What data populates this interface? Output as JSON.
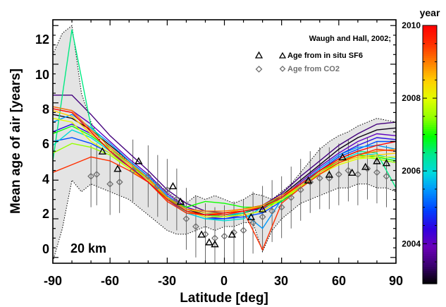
{
  "chart_data": {
    "type": "line",
    "xlabel": "Latitude [deg]",
    "ylabel": "Mean age of air [years]",
    "xlim": [
      -90,
      90
    ],
    "ylim": [
      -0.3,
      12.3
    ],
    "x_ticks": [
      -90,
      -60,
      -30,
      0,
      30,
      60,
      90
    ],
    "y_ticks": [
      0,
      2,
      4,
      6,
      8,
      10,
      12
    ],
    "annotation": "20 km",
    "grid": false,
    "legend_position": "top-right",
    "legend_title": "Waugh and Hall, 2002;",
    "legend": [
      {
        "name": "Age from in situ SF6",
        "marker": "triangle",
        "color": "#000000"
      },
      {
        "name": "Age from CO2",
        "marker": "diamond",
        "color": "#707070"
      }
    ],
    "colorbar": {
      "title": "year",
      "range": [
        2002.9,
        2010.0
      ],
      "ticks": [
        2004,
        2006,
        2008,
        2010
      ],
      "colors": [
        "#000000",
        "#3a0070",
        "#6a00b8",
        "#3000e0",
        "#0040ff",
        "#0090ff",
        "#00d8e0",
        "#00e890",
        "#00ff00",
        "#90ff00",
        "#e0ff00",
        "#ffd000",
        "#ff8000",
        "#ff3000",
        "#ff0000"
      ]
    },
    "spread_envelope": {
      "x": [
        -90,
        -85,
        -80,
        -75,
        -70,
        -65,
        -60,
        -55,
        -50,
        -45,
        -40,
        -35,
        -30,
        -25,
        -20,
        -15,
        -10,
        -5,
        0,
        5,
        10,
        15,
        20,
        25,
        30,
        35,
        40,
        45,
        50,
        55,
        60,
        65,
        70,
        75,
        80,
        85,
        90
      ],
      "upper": [
        10.5,
        11.6,
        12.0,
        8.5,
        7.0,
        6.0,
        5.5,
        5.3,
        5.0,
        4.6,
        4.2,
        3.8,
        3.4,
        3.0,
        2.8,
        3.2,
        3.0,
        3.2,
        3.0,
        2.8,
        3.0,
        3.3,
        3.2,
        3.0,
        3.4,
        3.8,
        4.4,
        5.0,
        5.6,
        6.0,
        6.3,
        6.5,
        6.8,
        7.0,
        7.2,
        7.1,
        7.0
      ],
      "lower": [
        -0.2,
        1.5,
        4.0,
        3.4,
        3.8,
        3.6,
        3.4,
        3.2,
        3.0,
        2.6,
        2.2,
        1.8,
        1.4,
        1.2,
        1.2,
        1.4,
        1.6,
        1.4,
        1.6,
        1.6,
        1.8,
        1.8,
        0.3,
        1.4,
        2.0,
        2.4,
        2.8,
        3.0,
        3.2,
        3.4,
        3.6,
        3.6,
        3.8,
        3.8,
        3.6,
        3.6,
        3.4
      ]
    },
    "x": [
      -90,
      -80,
      -70,
      -60,
      -50,
      -40,
      -30,
      -20,
      -10,
      0,
      10,
      20,
      30,
      40,
      50,
      60,
      70,
      80,
      90
    ],
    "series": [
      {
        "year": 2003.0,
        "values": [
          7.4,
          7.2,
          6.6,
          5.8,
          5.0,
          4.2,
          3.2,
          2.5,
          2.2,
          2.1,
          2.3,
          2.6,
          3.2,
          4.0,
          4.8,
          5.6,
          6.2,
          6.6,
          6.7
        ]
      },
      {
        "year": 2003.5,
        "values": [
          8.4,
          8.4,
          7.4,
          6.3,
          5.4,
          4.5,
          3.5,
          2.8,
          2.4,
          2.3,
          2.5,
          2.7,
          3.3,
          4.2,
          5.0,
          5.8,
          6.4,
          6.9,
          7.0
        ]
      },
      {
        "year": 2004.0,
        "values": [
          7.8,
          7.6,
          6.9,
          6.0,
          5.1,
          4.3,
          3.3,
          2.6,
          2.3,
          2.2,
          2.4,
          2.5,
          3.1,
          3.9,
          4.7,
          5.4,
          6.0,
          6.4,
          6.3
        ]
      },
      {
        "year": 2004.5,
        "values": [
          6.5,
          6.9,
          6.4,
          5.6,
          4.9,
          4.1,
          3.1,
          2.4,
          2.1,
          2.0,
          2.2,
          2.4,
          3.0,
          3.8,
          4.6,
          5.3,
          5.8,
          6.2,
          6.1
        ]
      },
      {
        "year": 2005.0,
        "values": [
          6.0,
          6.2,
          5.9,
          5.4,
          4.7,
          4.0,
          3.0,
          2.3,
          2.0,
          2.0,
          2.1,
          2.3,
          2.9,
          3.7,
          4.5,
          5.2,
          5.6,
          6.0,
          6.0
        ]
      },
      {
        "year": 2005.5,
        "values": [
          7.0,
          7.4,
          6.7,
          5.9,
          5.0,
          4.2,
          3.2,
          2.5,
          2.3,
          2.2,
          2.3,
          1.5,
          3.0,
          3.8,
          4.6,
          5.3,
          5.7,
          5.8,
          5.6
        ]
      },
      {
        "year": 2006.0,
        "values": [
          5.8,
          6.6,
          6.2,
          5.5,
          4.8,
          4.0,
          3.1,
          2.3,
          2.0,
          1.9,
          2.0,
          2.6,
          3.0,
          3.7,
          4.4,
          5.0,
          5.4,
          5.3,
          5.1
        ]
      },
      {
        "year": 2006.5,
        "values": [
          5.0,
          11.8,
          6.8,
          5.6,
          4.9,
          4.1,
          3.1,
          2.4,
          2.2,
          2.1,
          2.3,
          2.7,
          3.1,
          3.8,
          4.5,
          5.1,
          5.5,
          5.4,
          3.6
        ]
      },
      {
        "year": 2007.0,
        "values": [
          6.4,
          6.8,
          6.3,
          5.6,
          4.8,
          4.1,
          3.0,
          2.6,
          2.9,
          2.8,
          2.6,
          2.6,
          2.9,
          3.6,
          4.4,
          5.0,
          5.3,
          5.2,
          5.0
        ]
      },
      {
        "year": 2007.5,
        "values": [
          5.4,
          5.9,
          5.7,
          5.3,
          4.6,
          3.9,
          3.0,
          2.4,
          2.2,
          2.2,
          2.4,
          2.6,
          3.0,
          3.7,
          4.3,
          4.9,
          5.2,
          5.1,
          4.9
        ]
      },
      {
        "year": 2008.0,
        "values": [
          7.2,
          7.0,
          6.0,
          5.4,
          4.6,
          3.9,
          3.0,
          2.4,
          2.1,
          2.1,
          2.2,
          2.4,
          3.0,
          3.6,
          4.3,
          4.8,
          5.1,
          5.2,
          5.2
        ]
      },
      {
        "year": 2008.5,
        "values": [
          7.6,
          7.3,
          6.4,
          5.6,
          4.8,
          4.0,
          3.1,
          2.5,
          2.3,
          2.3,
          2.5,
          2.6,
          3.1,
          3.7,
          4.4,
          4.9,
          5.2,
          5.3,
          5.4
        ]
      },
      {
        "year": 2009.0,
        "values": [
          7.8,
          7.6,
          6.6,
          5.7,
          4.9,
          4.1,
          3.1,
          2.5,
          2.4,
          2.4,
          2.5,
          2.7,
          3.2,
          3.8,
          4.5,
          5.0,
          5.3,
          5.5,
          5.6
        ]
      },
      {
        "year": 2009.5,
        "values": [
          4.4,
          4.8,
          5.2,
          5.0,
          4.5,
          3.9,
          2.9,
          2.3,
          2.2,
          2.2,
          2.4,
          0.4,
          2.8,
          3.6,
          4.3,
          4.9,
          5.3,
          5.6,
          5.5
        ]
      },
      {
        "year": 2010.0,
        "values": [
          7.7,
          7.5,
          6.5,
          5.5,
          4.7,
          3.9,
          3.0,
          2.4,
          2.2,
          2.3,
          2.4,
          2.6,
          3.1,
          3.8,
          4.5,
          5.1,
          5.5,
          5.8,
          6.0
        ]
      }
    ],
    "sf6_points": {
      "x": [
        -64,
        -56,
        -45,
        -27,
        -23,
        -12,
        -8,
        -5,
        4,
        14,
        20,
        44,
        55,
        62,
        67,
        74,
        80,
        85
      ],
      "y": [
        5.5,
        4.6,
        5.0,
        3.7,
        2.9,
        1.2,
        0.8,
        0.7,
        1.2,
        2.1,
        2.5,
        4.0,
        4.3,
        5.2,
        4.4,
        4.7,
        5.0,
        4.9
      ]
    },
    "co2_points": {
      "x": [
        -70,
        -67,
        -60,
        -55,
        -48,
        -40,
        -35,
        -30,
        -25,
        -20,
        -15,
        -10,
        -5,
        0,
        5,
        10,
        15,
        20,
        25,
        30,
        35,
        40,
        45,
        50,
        55,
        60,
        65,
        70,
        75,
        80,
        85
      ],
      "y": [
        4.2,
        4.3,
        3.8,
        3.9,
        4.5,
        4.2,
        3.7,
        3.5,
        3.0,
        2.0,
        1.6,
        1.2,
        1.0,
        1.1,
        1.3,
        1.4,
        1.8,
        2.1,
        2.4,
        2.6,
        3.1,
        3.5,
        3.9,
        4.1,
        4.1,
        4.3,
        4.5,
        4.3,
        4.6,
        4.4,
        4.2
      ]
    }
  }
}
